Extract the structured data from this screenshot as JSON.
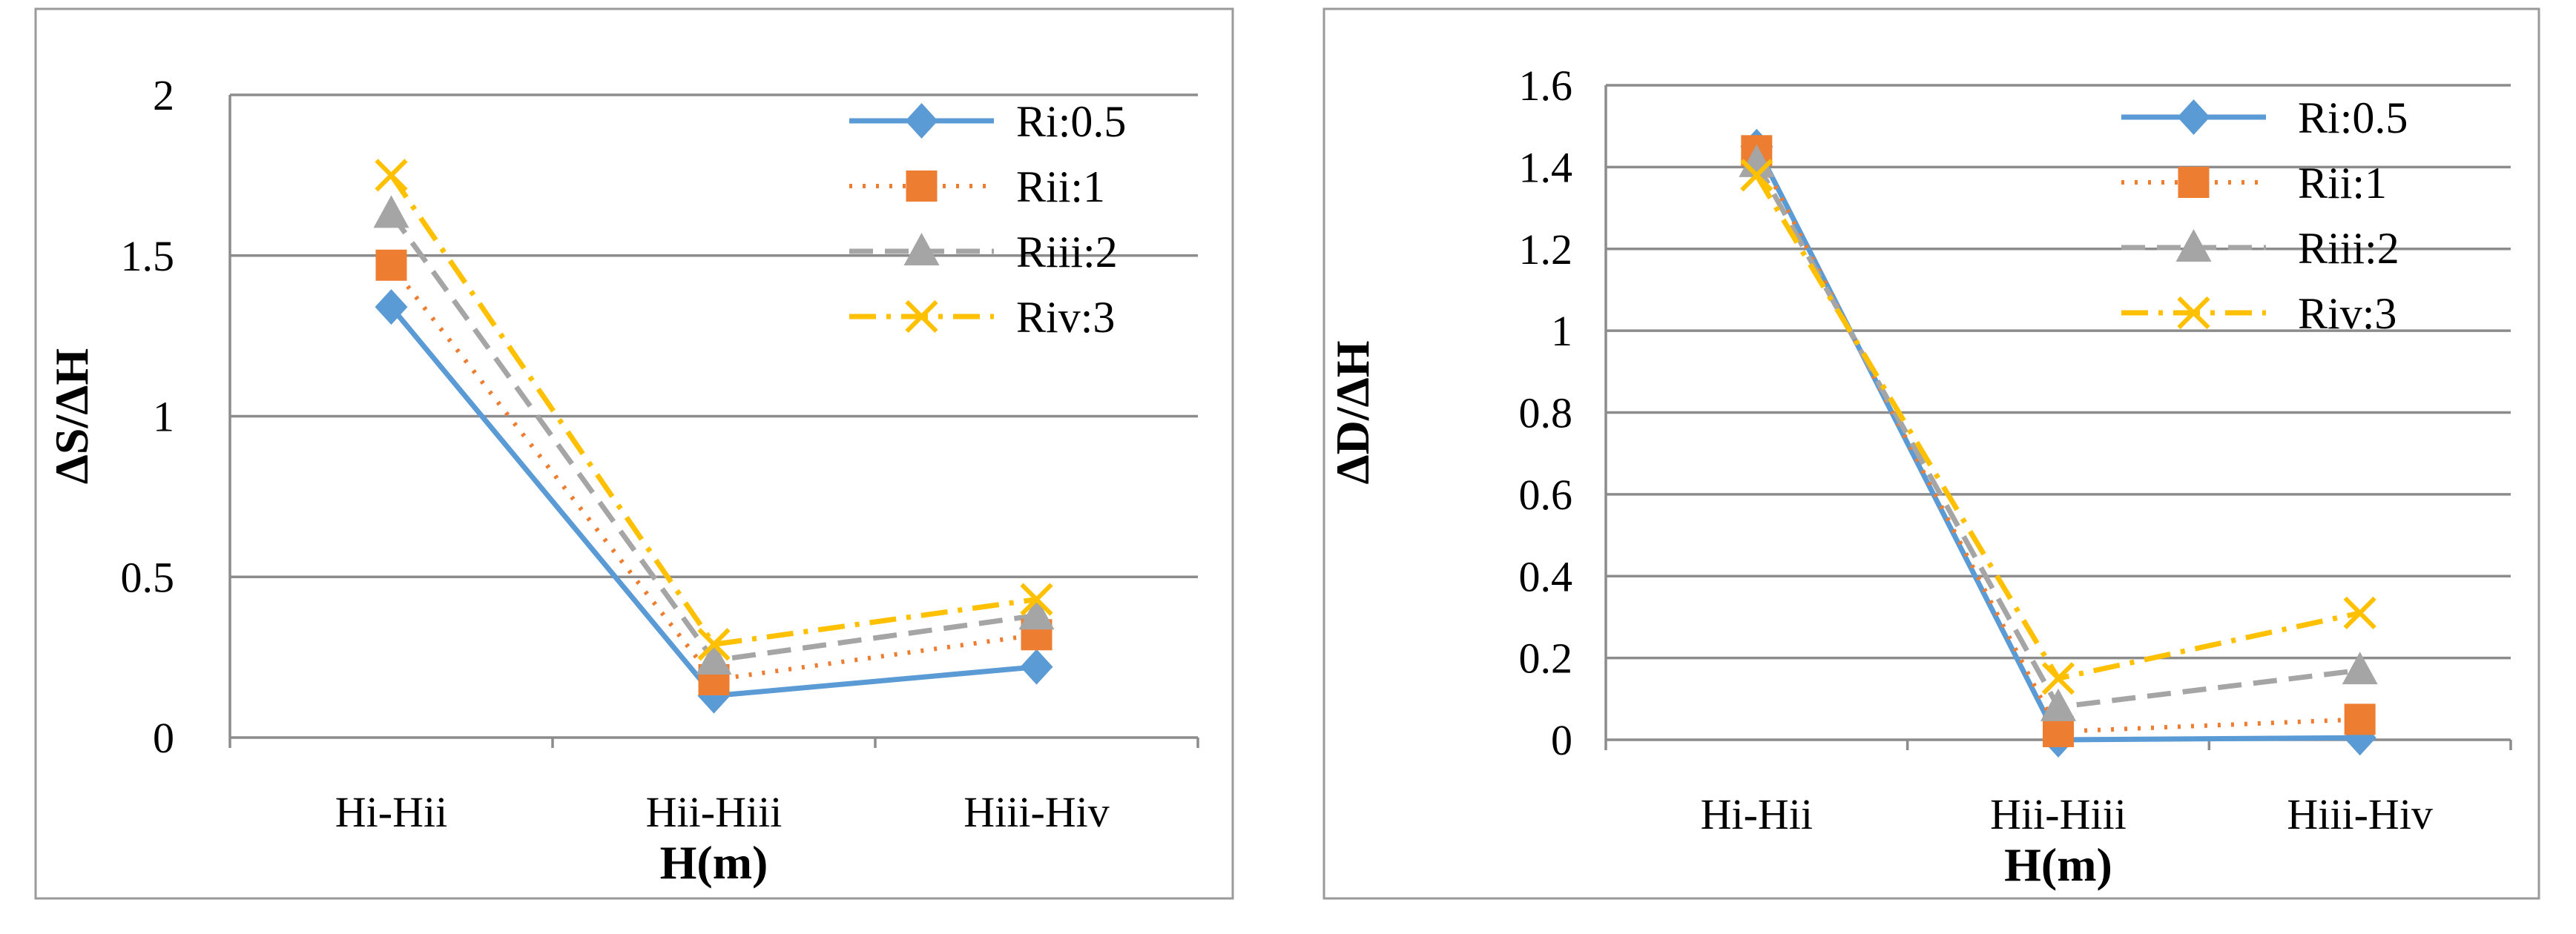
{
  "chart_data": [
    {
      "type": "line",
      "title": "",
      "xlabel": "H(m)",
      "ylabel": "ΔS/ΔH",
      "categories": [
        "Hi-Hii",
        "Hii-Hiii",
        "Hiii-Hiv"
      ],
      "ylim": [
        0,
        2
      ],
      "yticks": [
        0,
        0.5,
        1,
        1.5,
        2
      ],
      "ytick_labels": [
        "0",
        "0.5",
        "1",
        "1.5",
        "2"
      ],
      "grid": true,
      "legend": "top-right",
      "series": [
        {
          "name": "Ri:0.5",
          "values": [
            1.34,
            0.13,
            0.22
          ]
        },
        {
          "name": "Rii:1",
          "values": [
            1.47,
            0.18,
            0.32
          ]
        },
        {
          "name": "Riii:2",
          "values": [
            1.63,
            0.24,
            0.38
          ]
        },
        {
          "name": "Riv:3",
          "values": [
            1.75,
            0.29,
            0.43
          ]
        }
      ]
    },
    {
      "type": "line",
      "title": "",
      "xlabel": "H(m)",
      "ylabel": "ΔD/ΔH",
      "categories": [
        "Hi-Hii",
        "Hii-Hiii",
        "Hiii-Hiv"
      ],
      "ylim": [
        0,
        1.6
      ],
      "yticks": [
        0,
        0.2,
        0.4,
        0.6,
        0.8,
        1,
        1.2,
        1.4,
        1.6
      ],
      "ytick_labels": [
        "0",
        "0.2",
        "0.4",
        "0.6",
        "0.8",
        "1",
        "1.2",
        "1.4",
        "1.6"
      ],
      "grid": true,
      "legend": "top-right",
      "series": [
        {
          "name": "Ri:0.5",
          "values": [
            1.45,
            0.0,
            0.005
          ]
        },
        {
          "name": "Rii:1",
          "values": [
            1.44,
            0.02,
            0.05
          ]
        },
        {
          "name": "Riii:2",
          "values": [
            1.41,
            0.08,
            0.17
          ]
        },
        {
          "name": "Riv:3",
          "values": [
            1.38,
            0.15,
            0.31
          ]
        }
      ]
    }
  ],
  "series_styles": [
    {
      "color": "#5B9BD5",
      "dash": "",
      "marker": "diamond",
      "width": 7
    },
    {
      "color": "#ED7D31",
      "dash": "4 14",
      "marker": "square",
      "width": 6
    },
    {
      "color": "#A5A5A5",
      "dash": "32 16",
      "marker": "triangle",
      "width": 7
    },
    {
      "color": "#FFC000",
      "dash": "36 14 6 14",
      "marker": "x",
      "width": 7
    }
  ]
}
